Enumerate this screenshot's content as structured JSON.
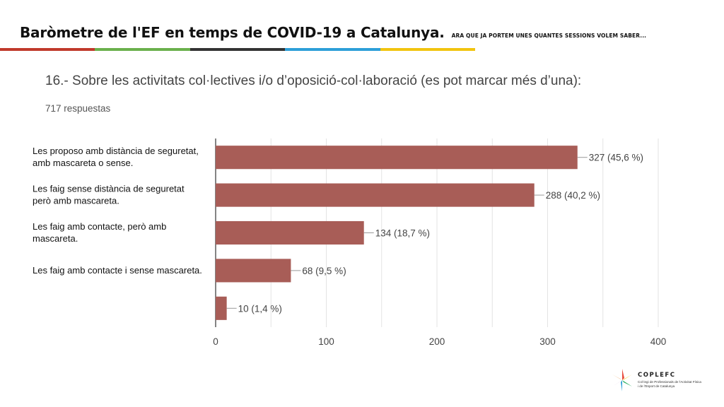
{
  "header": {
    "title": "Baròmetre de l'EF en temps de COVID-19 a Catalunya.",
    "subtitle": "ARA QUE JA PORTEM UNES QUANTES SESSIONS VOLEM SABER..."
  },
  "color_bar": [
    "#c0392b",
    "#6ab04c",
    "#333333",
    "#2d9fd8",
    "#f1c40f"
  ],
  "question": "16.- Sobre les activitats col·lectives i/o d’oposició-col·laboració (es pot marcar més d’una):",
  "responses_count": "717 respuestas",
  "chart_data": {
    "type": "bar",
    "orientation": "horizontal",
    "title": "16.- Sobre les activitats col·lectives i/o d’oposició-col·laboració (es pot marcar més d’una):",
    "categories": [
      "Les proposo amb distància de seguretat,\namb mascareta o sense.",
      "Les faig sense distància de seguretat\nperò amb mascareta.",
      "Les faig amb contacte, però amb\nmascareta.",
      "Les faig amb contacte i sense mascareta.",
      ""
    ],
    "values": [
      327,
      288,
      134,
      68,
      10
    ],
    "data_labels": [
      "327 (45,6 %)",
      "288 (40,2 %)",
      "134 (18,7 %)",
      "68 (9,5 %)",
      "10 (1,4 %)"
    ],
    "xlim": [
      0,
      400
    ],
    "xticks": [
      0,
      100,
      200,
      300,
      400
    ],
    "bar_color": "#a85d57",
    "grid": true
  },
  "logo": {
    "name": "COPLEFC",
    "description": "Col·legi de Professionals de l'Activitat Física i de l'Esport de Catalunya"
  }
}
